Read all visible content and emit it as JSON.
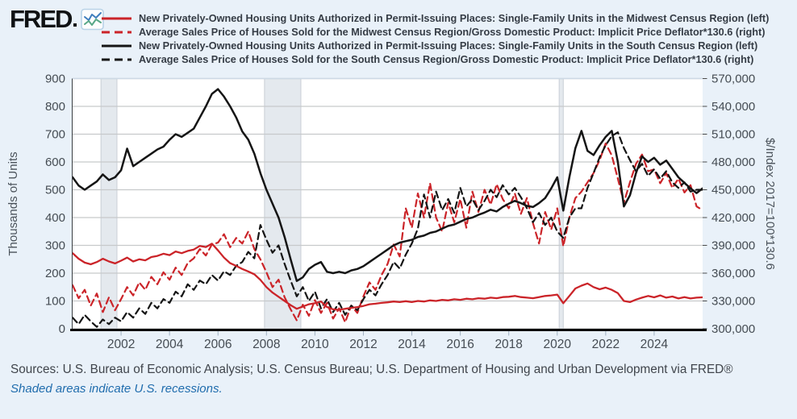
{
  "header": {
    "logo_text": "FRED"
  },
  "footer": {
    "sources": "Sources: U.S. Bureau of Economic Analysis; U.S. Census Bureau; U.S. Department of Housing and Urban Development via FRED®",
    "note": "Shaded areas indicate U.S. recessions."
  },
  "colors": {
    "background": "#e9f1f9",
    "plot_background": "#ffffff",
    "gridline": "#c7c9cb",
    "plot_top_border": "#cdd9e5",
    "recession_band": "#e4e9ee",
    "recession_band_edge": "#c9cfd6",
    "axis_line": "#0a0a0a",
    "tick_label": "#454c53",
    "axis_title": "#4b535b",
    "series_red": "#cb2429",
    "series_black": "#151515",
    "note_blue": "#1f6cad"
  },
  "chart_data": {
    "type": "line",
    "left_axis": {
      "label": "Thousands of Units",
      "min": 0,
      "max": 900,
      "ticks": [
        0,
        100,
        200,
        300,
        400,
        500,
        600,
        700,
        800,
        900
      ]
    },
    "right_axis": {
      "label": "$/Index 2017=100*130.6",
      "min": 300000,
      "max": 570000,
      "ticks": [
        300000,
        330000,
        360000,
        390000,
        420000,
        450000,
        480000,
        510000,
        540000,
        570000
      ]
    },
    "x_axis": {
      "ticks": [
        2002,
        2004,
        2006,
        2008,
        2010,
        2012,
        2014,
        2016,
        2018,
        2020,
        2022,
        2024
      ],
      "range": [
        2000,
        2026
      ]
    },
    "recessions": [
      [
        2001.17,
        2001.83
      ],
      [
        2007.92,
        2009.42
      ],
      [
        2020.08,
        2020.25
      ]
    ],
    "grid": "horizontal-only",
    "legend_position": "top",
    "series": [
      {
        "label": "New Privately-Owned Housing Units Authorized in Permit-Issuing Places: Single-Family Units in the Midwest Census Region (left)",
        "axis": "left",
        "color": "#cb2429",
        "dash": false,
        "start": 2000,
        "step": 0.25,
        "value_scale": 1,
        "values": [
          272,
          252,
          238,
          232,
          240,
          252,
          242,
          235,
          245,
          256,
          242,
          250,
          246,
          258,
          262,
          270,
          265,
          278,
          272,
          280,
          285,
          298,
          294,
          306,
          282,
          256,
          236,
          226,
          215,
          206,
          196,
          176,
          150,
          130,
          115,
          100,
          85,
          72,
          80,
          88,
          92,
          98,
          78,
          70,
          68,
          72,
          75,
          78,
          82,
          88,
          90,
          93,
          95,
          98,
          96,
          99,
          96,
          100,
          98,
          102,
          100,
          104,
          102,
          106,
          104,
          108,
          106,
          110,
          108,
          112,
          110,
          114,
          115,
          118,
          114,
          112,
          110,
          114,
          118,
          120,
          123,
          92,
          118,
          145,
          155,
          163,
          150,
          142,
          148,
          140,
          128,
          100,
          96,
          105,
          112,
          118,
          113,
          120,
          112,
          116,
          109,
          114,
          109,
          112,
          113
        ]
      },
      {
        "label": "Average Sales Price of Houses Sold for the Midwest Census Region/Gross Domestic Product: Implicit Price Deflator*130.6 (right)",
        "axis": "right",
        "color": "#cb2429",
        "dash": true,
        "start": 2000,
        "step": 0.25,
        "value_scale": 1000,
        "values": [
          347,
          333,
          342,
          325,
          338,
          318,
          334,
          320,
          332,
          345,
          336,
          350,
          342,
          356,
          348,
          361,
          353,
          366,
          358,
          371,
          376,
          386,
          379,
          391,
          393,
          402,
          388,
          398,
          392,
          405,
          386,
          375,
          361,
          345,
          353,
          334,
          321,
          309,
          326,
          314,
          331,
          317,
          328,
          311,
          322,
          307,
          325,
          317,
          335,
          350,
          342,
          358,
          370,
          391,
          378,
          430,
          409,
          446,
          420,
          457,
          420,
          405,
          436,
          415,
          440,
          409,
          448,
          426,
          450,
          434,
          456,
          440,
          430,
          446,
          424,
          441,
          414,
          392,
          426,
          407,
          430,
          389,
          420,
          441,
          448,
          458,
          468,
          482,
          500,
          487,
          462,
          436,
          458,
          478,
          488,
          470,
          472,
          457,
          468,
          452,
          462,
          447,
          455,
          432,
          428
        ]
      },
      {
        "label": "New Privately-Owned Housing Units Authorized in Permit-Issuing Places: Single-Family Units in the South Census Region (left)",
        "axis": "left",
        "color": "#151515",
        "dash": false,
        "start": 2000,
        "step": 0.25,
        "value_scale": 1,
        "values": [
          545,
          515,
          500,
          515,
          530,
          555,
          535,
          545,
          570,
          648,
          585,
          600,
          615,
          630,
          645,
          655,
          680,
          700,
          690,
          705,
          720,
          760,
          800,
          845,
          862,
          835,
          800,
          760,
          710,
          680,
          630,
          560,
          500,
          450,
          400,
          330,
          250,
          172,
          185,
          215,
          230,
          240,
          205,
          200,
          205,
          200,
          210,
          215,
          225,
          240,
          255,
          270,
          285,
          300,
          310,
          315,
          320,
          330,
          335,
          345,
          350,
          360,
          370,
          375,
          385,
          395,
          400,
          410,
          418,
          428,
          422,
          438,
          450,
          460,
          452,
          442,
          438,
          452,
          470,
          505,
          545,
          425,
          545,
          650,
          712,
          640,
          625,
          660,
          690,
          712,
          600,
          440,
          480,
          560,
          620,
          600,
          615,
          590,
          605,
          575,
          545,
          525,
          505,
          488,
          505
        ]
      },
      {
        "label": "Average Sales Price of Houses Sold for the South Census Region/Gross Domestic Product: Implicit Price Deflator*130.6 (right)",
        "axis": "right",
        "color": "#151515",
        "dash": true,
        "start": 2000,
        "step": 0.25,
        "value_scale": 1000,
        "values": [
          312,
          305,
          315,
          308,
          302,
          310,
          305,
          312,
          308,
          318,
          312,
          322,
          316,
          328,
          322,
          332,
          328,
          340,
          335,
          348,
          342,
          352,
          348,
          358,
          352,
          362,
          358,
          368,
          372,
          383,
          376,
          412,
          396,
          382,
          390,
          370,
          352,
          335,
          345,
          330,
          340,
          322,
          332,
          318,
          328,
          315,
          325,
          320,
          332,
          342,
          336,
          348,
          358,
          372,
          365,
          380,
          392,
          408,
          445,
          420,
          448,
          428,
          440,
          425,
          452,
          432,
          440,
          428,
          438,
          450,
          442,
          455,
          445,
          452,
          442,
          430,
          415,
          425,
          412,
          420,
          405,
          398,
          420,
          430,
          430,
          452,
          468,
          485,
          498,
          508,
          512,
          495,
          482,
          470,
          478,
          465,
          472,
          462,
          470,
          458,
          452,
          458,
          448,
          450,
          450
        ]
      }
    ]
  }
}
